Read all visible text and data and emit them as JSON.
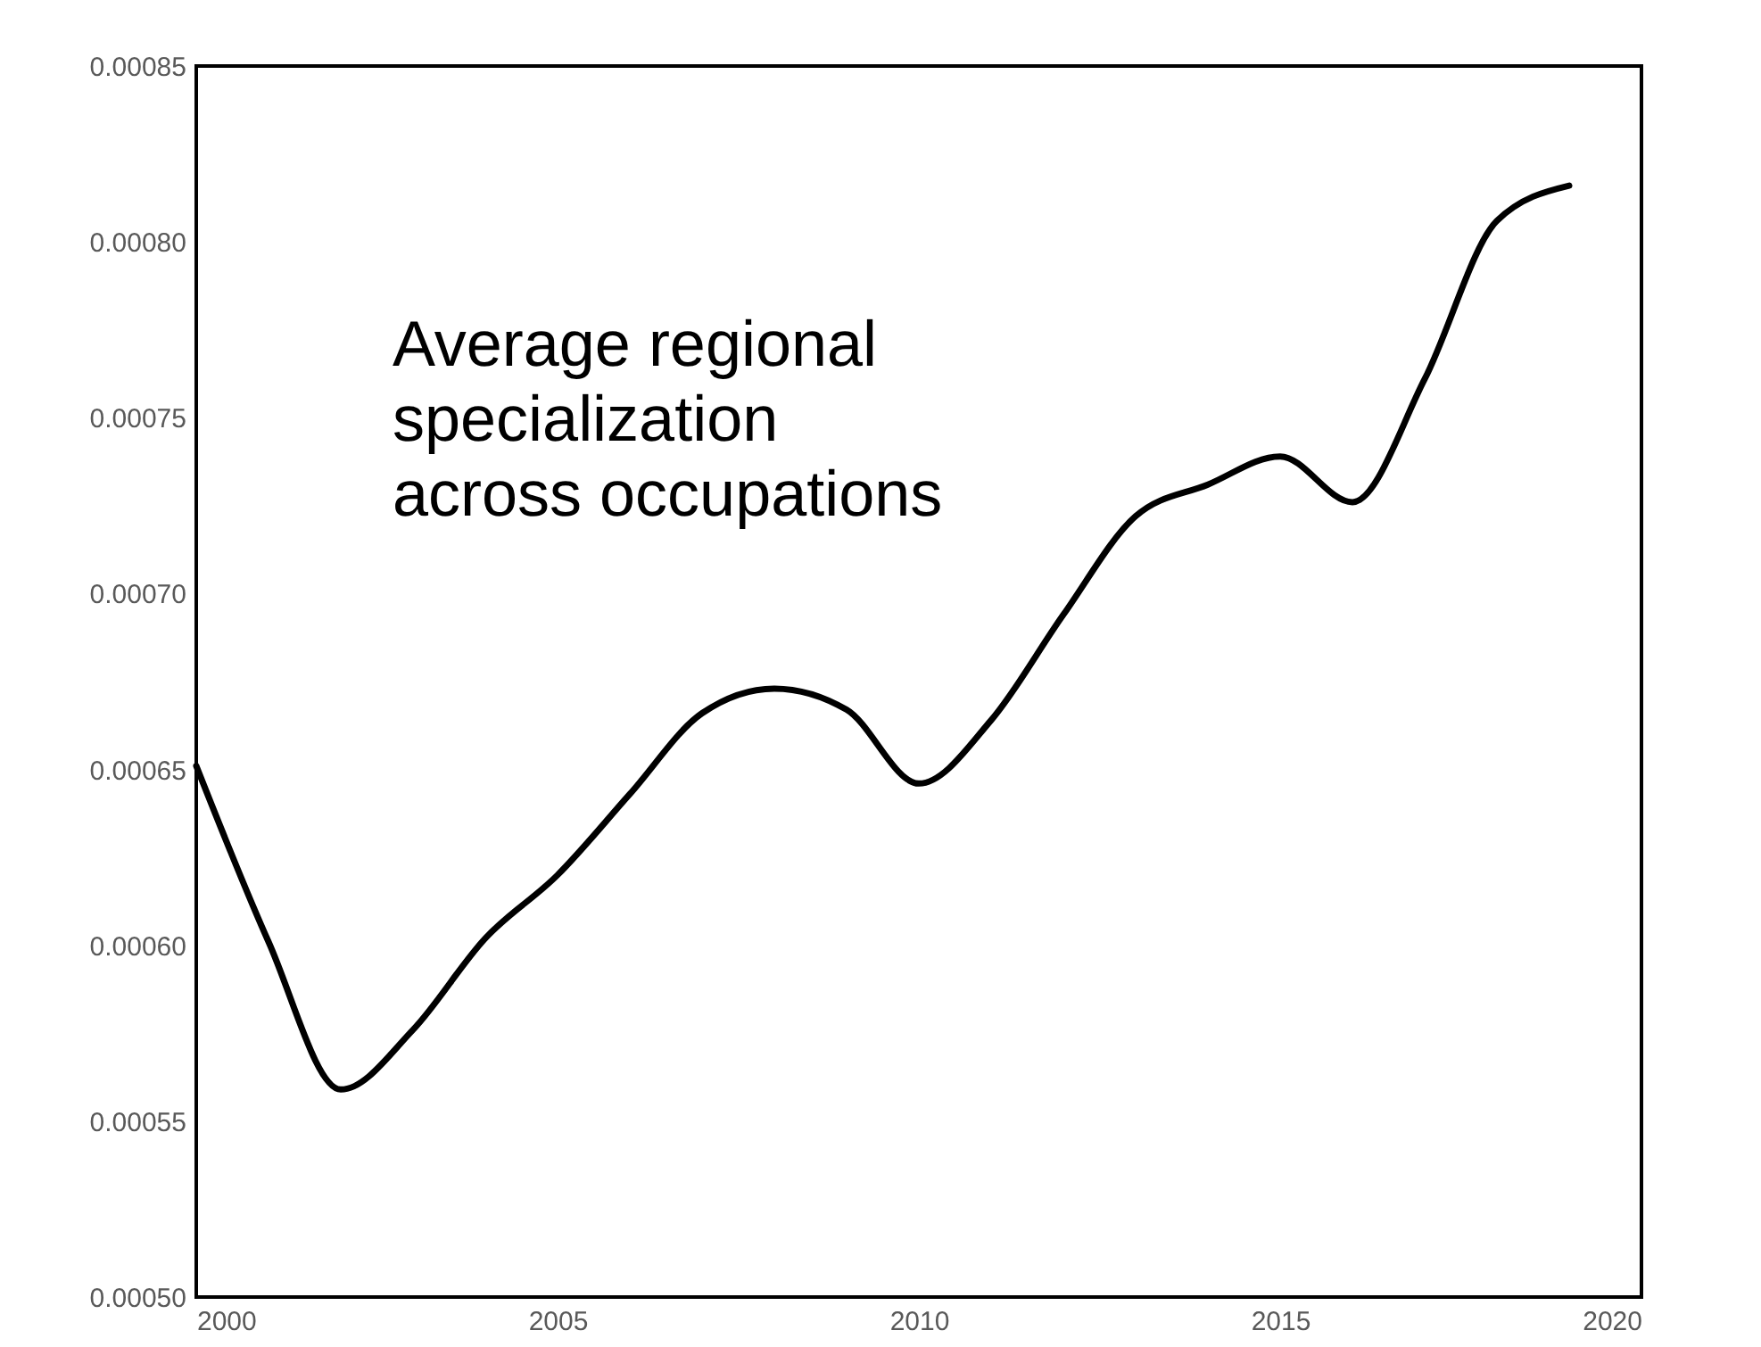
{
  "chart_data": {
    "type": "line",
    "x": [
      2000,
      2001,
      2002,
      2003,
      2004,
      2005,
      2006,
      2007,
      2008,
      2009,
      2010,
      2011,
      2012,
      2013,
      2014,
      2015,
      2016,
      2017,
      2018,
      2019
    ],
    "series": [
      {
        "color": "#000000",
        "values": [
          0.000651,
          0.000601,
          0.000559,
          0.000576,
          0.000602,
          0.00062,
          0.000643,
          0.000666,
          0.000673,
          0.000667,
          0.000646,
          0.000664,
          0.000694,
          0.000722,
          0.000731,
          0.000739,
          0.000726,
          0.000761,
          0.000806,
          0.000816
        ]
      }
    ],
    "xlim": [
      2000,
      2020
    ],
    "xticks": [
      2000,
      2005,
      2010,
      2015,
      2020
    ],
    "ylim": [
      0.0005,
      0.00085
    ],
    "yticks": [
      {
        "value": 0.0005,
        "label": "0.00050"
      },
      {
        "value": 0.00055,
        "label": "0.00055"
      },
      {
        "value": 0.0006,
        "label": "0.00060"
      },
      {
        "value": 0.00065,
        "label": "0.00065"
      },
      {
        "value": 0.0007,
        "label": "0.00070"
      },
      {
        "value": 0.00075,
        "label": "0.00075"
      },
      {
        "value": 0.0008,
        "label": "0.00080"
      },
      {
        "value": 0.00085,
        "label": "0.00085"
      }
    ],
    "annotations": [
      "Average regional\nspecialization\nacross occupations"
    ],
    "grid": false,
    "legend": false,
    "marker": "none",
    "line_style": "solid"
  }
}
